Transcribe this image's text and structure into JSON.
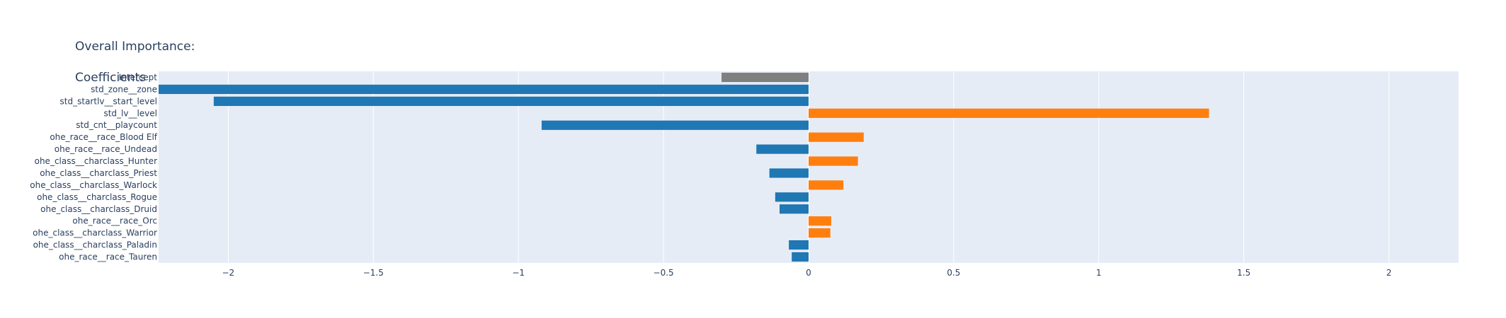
{
  "chart_data": {
    "type": "bar",
    "orientation": "horizontal",
    "title_lines": [
      "Overall Importance:",
      "Coefficients"
    ],
    "xlabel": "",
    "ylabel": "",
    "xlim": [
      -2.24,
      2.24
    ],
    "x_ticks": [
      -2,
      -1.5,
      -1,
      -0.5,
      0,
      0.5,
      1,
      1.5,
      2
    ],
    "x_tick_labels": [
      "−2",
      "−1.5",
      "−1",
      "−0.5",
      "0",
      "0.5",
      "1",
      "1.5",
      "2"
    ],
    "grid": true,
    "legend": false,
    "colors": {
      "positive": "#ff7f0e",
      "negative": "#1f77b4",
      "intercept": "#7f7f7f",
      "plot_bg": "#e5ecf6",
      "grid": "#ffffff",
      "text": "#2a3f5f"
    },
    "categories": [
      "Intercept",
      "std_zone__zone",
      "std_startlv__start_level",
      "std_lv__level",
      "std_cnt__playcount",
      "ohe_race__race_Blood Elf",
      "ohe_race__race_Undead",
      "ohe_class__charclass_Hunter",
      "ohe_class__charclass_Priest",
      "ohe_class__charclass_Warlock",
      "ohe_class__charclass_Rogue",
      "ohe_class__charclass_Druid",
      "ohe_race__race_Orc",
      "ohe_class__charclass_Warrior",
      "ohe_class__charclass_Paladin",
      "ohe_race__race_Tauren"
    ],
    "values": [
      -0.3,
      -2.3,
      -2.05,
      1.38,
      -0.92,
      0.19,
      -0.18,
      0.17,
      -0.135,
      0.12,
      -0.115,
      -0.1,
      0.078,
      0.075,
      -0.068,
      -0.058
    ]
  }
}
